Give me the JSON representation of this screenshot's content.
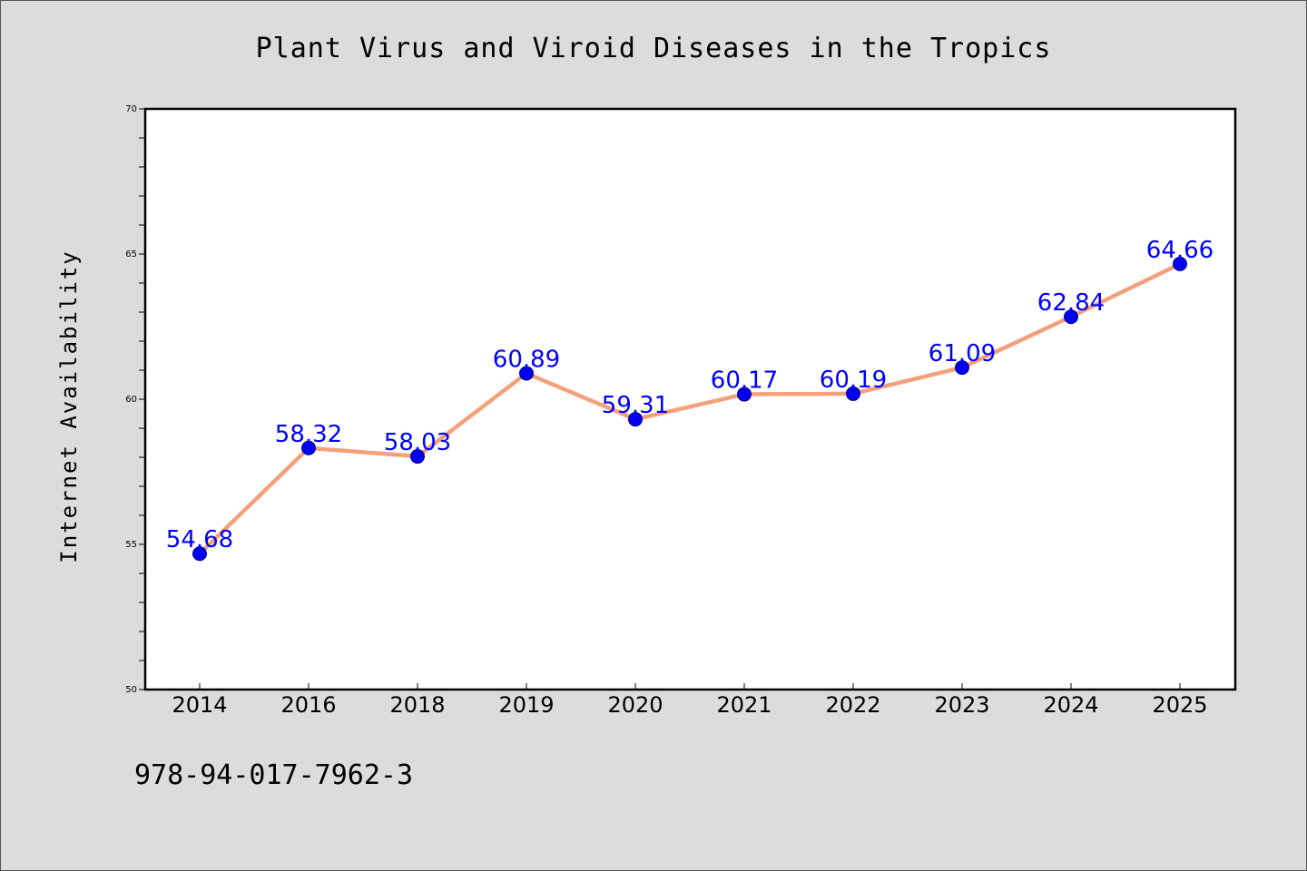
{
  "chart_data": {
    "type": "line",
    "title": "Plant Virus and Viroid Diseases in the Tropics",
    "xlabel": "",
    "ylabel": "Internet Availability",
    "categories": [
      "2014",
      "2016",
      "2018",
      "2019",
      "2020",
      "2021",
      "2022",
      "2023",
      "2024",
      "2025"
    ],
    "series": [
      {
        "values": [
          54.68,
          58.32,
          58.03,
          60.89,
          59.31,
          60.17,
          60.19,
          61.09,
          62.84,
          64.66
        ],
        "labels": [
          "54.68",
          "58.32",
          "58.03",
          "60.89",
          "59.31",
          "60.17",
          "60.19",
          "61.09",
          "62.84",
          "64.66"
        ],
        "line_color": "#f4a07a",
        "marker_color": "#0000ee"
      }
    ],
    "ylim": [
      50,
      70
    ],
    "yticks": [
      "50",
      "55",
      "60",
      "65",
      "70"
    ],
    "grid": false,
    "legend": "none",
    "label_color": "#0000ff",
    "annotation": "978-94-017-7962-3"
  },
  "colors": {
    "background": "#dcdcdc",
    "plot_background": "#ffffff",
    "line": "#f4a07a",
    "marker": "#0000ee",
    "data_label": "#0000ff"
  }
}
